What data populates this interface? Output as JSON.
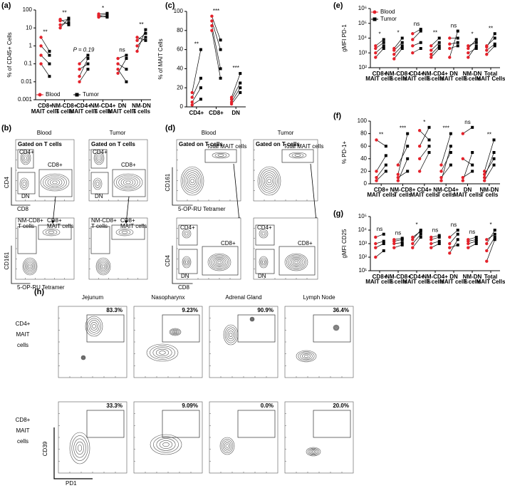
{
  "figure": {
    "panel_labels": [
      "(a)",
      "(b)",
      "(c)",
      "(d)",
      "(e)",
      "(f)",
      "(g)",
      "(h)"
    ]
  },
  "chart_data": [
    {
      "type": "paired-dot",
      "y_label": "% of CD45+ Cells",
      "log_scale": true,
      "ylim": [
        0.001,
        100
      ],
      "yticks": [
        0.001,
        0.01,
        0.1,
        1,
        10,
        100
      ],
      "legend": "bottom",
      "categories": [
        "CD8+ MAIT cells",
        "NM-CD8+ T cells",
        "CD4+ MAIT cells",
        "NM-CD4+ T cells",
        "DN MAIT cells",
        "NM-DN T cells"
      ],
      "significance": [
        "**",
        "**",
        "P = 0.19",
        "*",
        "ns",
        "**"
      ],
      "series": [
        {
          "name": "Blood",
          "color": "#e4222b",
          "marker": "circle",
          "values": [
            [
              0.3,
              1,
              3,
              0.1
            ],
            [
              15,
              25,
              10,
              30
            ],
            [
              0.05,
              0.01,
              0.1,
              0.02
            ],
            [
              40,
              50,
              45,
              60
            ],
            [
              0.1,
              0.03,
              0.05,
              0.2
            ],
            [
              1,
              2,
              3,
              0.5
            ]
          ]
        },
        {
          "name": "Tumor",
          "color": "#000000",
          "marker": "square",
          "values": [
            [
              0.1,
              0.3,
              0.5,
              0.02
            ],
            [
              20,
              30,
              35,
              15
            ],
            [
              0.1,
              0.05,
              0.3,
              0.2
            ],
            [
              45,
              55,
              40,
              65
            ],
            [
              0.05,
              0.2,
              0.01,
              0.3
            ],
            [
              3,
              5,
              2,
              8
            ]
          ]
        }
      ]
    },
    {
      "type": "paired-dot",
      "y_label": "% of MAIT Cells",
      "log_scale": false,
      "ylim": [
        0,
        100
      ],
      "yticks": [
        0,
        20,
        40,
        60,
        80,
        100
      ],
      "categories": [
        "CD4+",
        "CD8+",
        "DN"
      ],
      "significance": [
        "**",
        "***",
        "***"
      ],
      "series": [
        {
          "color": "#e4222b",
          "marker": "circle",
          "values": [
            [
              5,
              10,
              2,
              15
            ],
            [
              90,
              85,
              95,
              80
            ],
            [
              5,
              3,
              10,
              8
            ]
          ]
        },
        {
          "color": "#000000",
          "marker": "square",
          "values": [
            [
              20,
              30,
              8,
              60
            ],
            [
              60,
              40,
              70,
              30
            ],
            [
              20,
              15,
              35,
              25
            ]
          ]
        }
      ]
    },
    {
      "type": "paired-dot",
      "y_label": "gMFI PD-1",
      "log_scale": true,
      "ylim": [
        100,
        1000000
      ],
      "legend": "top-left",
      "yticks": [
        {
          "value": 100,
          "label": "10²"
        },
        {
          "value": 1000,
          "label": "10³"
        },
        {
          "value": 10000,
          "label": "10⁴"
        },
        {
          "value": 100000,
          "label": "10⁵"
        },
        {
          "value": 1000000,
          "label": "10⁶"
        }
      ],
      "categories": [
        "CD8+ MAIT cells",
        "NM-CD8+ T cells",
        "CD4+ MAIT cells",
        "NM-CD4+ T cells",
        "DN MAIT cells",
        "NM-DN T cells",
        "Total MAIT Cells"
      ],
      "significance": [
        "*",
        "*",
        "ns",
        "**",
        "ns",
        "*",
        "**"
      ],
      "series": [
        {
          "name": "Blood",
          "color": "#e4222b",
          "marker": "circle",
          "values": [
            [
              1000,
              3000,
              500,
              2000
            ],
            [
              800,
              2000,
              1500,
              400
            ],
            [
              3000,
              8000,
              1000,
              20000
            ],
            [
              1500,
              500,
              3000,
              800
            ],
            [
              2000,
              500,
              10000,
              4000
            ],
            [
              1000,
              2000,
              500,
              3000
            ],
            [
              1500,
              3000,
              800,
              2500
            ]
          ]
        },
        {
          "name": "Tumor",
          "color": "#000000",
          "marker": "square",
          "values": [
            [
              3000,
              8000,
              2000,
              5000
            ],
            [
              3000,
              10000,
              5000,
              2000
            ],
            [
              5000,
              30000,
              2000,
              40000
            ],
            [
              5000,
              2000,
              10000,
              3000
            ],
            [
              3000,
              30000,
              10000,
              5000
            ],
            [
              2000,
              8000,
              3000,
              5000
            ],
            [
              4000,
              10000,
              3000,
              20000
            ]
          ]
        }
      ]
    },
    {
      "type": "paired-dot",
      "y_label": "% PD-1+",
      "log_scale": false,
      "ylim": [
        0,
        100
      ],
      "yticks": [
        0,
        20,
        40,
        60,
        80,
        100
      ],
      "categories": [
        "CD8+ MAIT cells",
        "NM-CD8+ T cells",
        "CD4+ MAIT cells",
        "NM-CD4+ T cells",
        "DN MAIT cells",
        "NM-DN T cells"
      ],
      "significance": [
        "**",
        "***",
        "*",
        "***",
        "ns",
        "**"
      ],
      "series": [
        {
          "color": "#e4222b",
          "marker": "circle",
          "values": [
            [
              5,
              20,
              70,
              10
            ],
            [
              5,
              15,
              30,
              10
            ],
            [
              20,
              60,
              85,
              40
            ],
            [
              10,
              5,
              30,
              20
            ],
            [
              10,
              40,
              80,
              5
            ],
            [
              5,
              10,
              20,
              15
            ]
          ]
        },
        {
          "color": "#000000",
          "marker": "square",
          "values": [
            [
              20,
              45,
              60,
              30
            ],
            [
              40,
              80,
              60,
              20
            ],
            [
              50,
              90,
              70,
              60
            ],
            [
              30,
              60,
              80,
              50
            ],
            [
              20,
              30,
              90,
              50
            ],
            [
              30,
              50,
              70,
              40
            ]
          ]
        }
      ]
    },
    {
      "type": "paired-dot",
      "y_label": "gMFI CD25",
      "log_scale": true,
      "ylim": [
        10,
        100000
      ],
      "yticks": [
        {
          "value": 10,
          "label": "10¹"
        },
        {
          "value": 100,
          "label": "10²"
        },
        {
          "value": 1000,
          "label": "10³"
        },
        {
          "value": 10000,
          "label": "10⁴"
        },
        {
          "value": 100000,
          "label": "10⁵"
        }
      ],
      "categories": [
        "CD8+ MAIT cells",
        "NM-CD8+ T cells",
        "CD4+ MAIT cells",
        "NM-CD4+ T cells",
        "DN MAIT cells",
        "NM-DN T cells",
        "Total MAIT Cells"
      ],
      "significance": [
        "ns",
        "ns",
        "*",
        "ns",
        "ns",
        "ns",
        "*"
      ],
      "series": [
        {
          "color": "#e4222b",
          "marker": "circle",
          "values": [
            [
              1000,
              500,
              3000,
              100
            ],
            [
              1000,
              2000,
              500,
              1500
            ],
            [
              500,
              2000,
              1000,
              3000
            ],
            [
              1000,
              2000,
              3000,
              500
            ],
            [
              200,
              1000,
              3000,
              500
            ],
            [
              1000,
              2000,
              500,
              1500
            ],
            [
              300,
              1000,
              2000,
              50
            ]
          ]
        },
        {
          "color": "#000000",
          "marker": "square",
          "values": [
            [
              1500,
              1000,
              5000,
              300
            ],
            [
              1200,
              2500,
              800,
              2000
            ],
            [
              3000,
              10000,
              5000,
              8000
            ],
            [
              1500,
              3000,
              4000,
              1000
            ],
            [
              2000,
              5000,
              10000,
              800
            ],
            [
              1500,
              3000,
              1000,
              2000
            ],
            [
              3000,
              10000,
              5000,
              2000
            ]
          ]
        }
      ]
    }
  ],
  "flow_b": {
    "columns": [
      "Blood",
      "Tumor"
    ],
    "gate_title": "Gated on T cells",
    "top_gates": [
      "CD4+",
      "CD8+",
      "DN"
    ],
    "top_axes": [
      "CD4",
      "CD8"
    ],
    "bottom_gates": [
      "NM-CD8+ T cells",
      "CD8+ MAIT cells"
    ],
    "bottom_axes": [
      "CD161",
      "5-OP-RU Tetramer"
    ]
  },
  "flow_d": {
    "columns": [
      "Blood",
      "Tumor"
    ],
    "gate_title": "Gated on T cells",
    "top_gate": "Total MAIT cells",
    "top_axes": [
      "CD161",
      "5-OP-RU Tetramer"
    ],
    "bottom_gates": [
      "CD4+",
      "CD8+",
      "DN"
    ],
    "bottom_axes": [
      "CD4",
      "CD8"
    ]
  },
  "flow_h": {
    "tissues": [
      "Jejunum",
      "Nasopharynx",
      "Adrenal Gland",
      "Lymph Node"
    ],
    "rows": [
      "CD4+ MAIT cells",
      "CD8+ MAIT cells"
    ],
    "percentages": [
      [
        "83.3%",
        "9.23%",
        "90.9%",
        "36.4%"
      ],
      [
        "33.3%",
        "9.09%",
        "0.0%",
        "20.0%"
      ]
    ],
    "axes": [
      "CD39",
      "PD1"
    ]
  }
}
